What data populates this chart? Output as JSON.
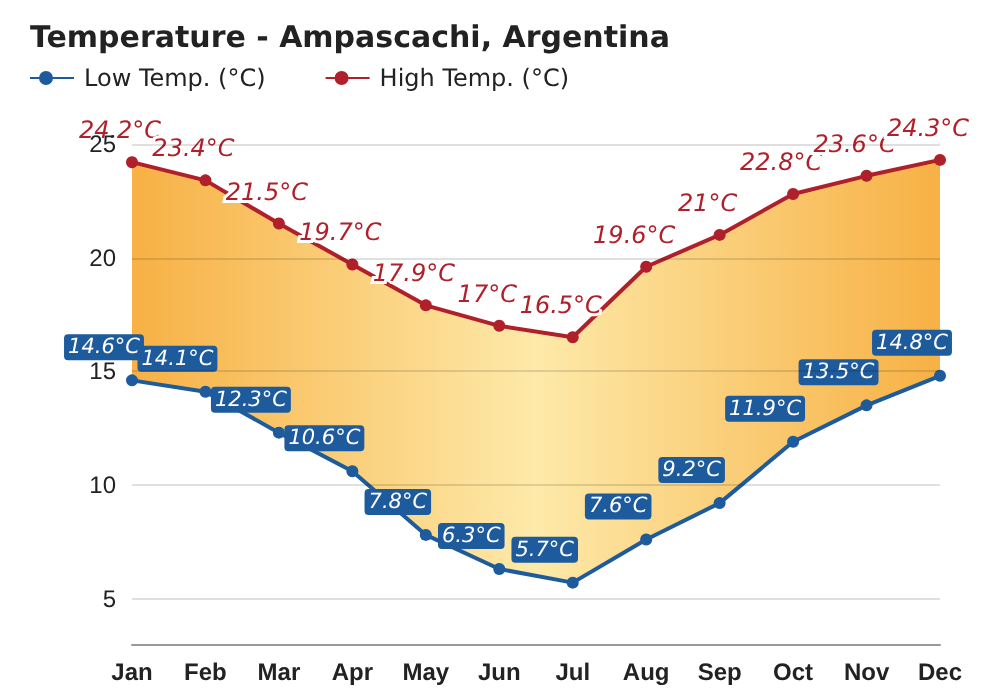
{
  "chart_data": {
    "type": "area",
    "title": "Temperature - Ampascachi, Argentina",
    "categories": [
      "Jan",
      "Feb",
      "Mar",
      "Apr",
      "May",
      "Jun",
      "Jul",
      "Aug",
      "Sep",
      "Oct",
      "Nov",
      "Dec"
    ],
    "series": [
      {
        "name": "Low Temp. (°C)",
        "color": "#1e5b9c",
        "values": [
          14.6,
          14.1,
          12.3,
          10.6,
          7.8,
          6.3,
          5.7,
          7.6,
          9.2,
          11.9,
          13.5,
          14.8
        ],
        "value_labels": [
          "14.6°C",
          "14.1°C",
          "12.3°C",
          "10.6°C",
          "7.8°C",
          "6.3°C",
          "5.7°C",
          "7.6°C",
          "9.2°C",
          "11.9°C",
          "13.5°C",
          "14.8°C"
        ]
      },
      {
        "name": "High Temp. (°C)",
        "color": "#b0202a",
        "values": [
          24.2,
          23.4,
          21.5,
          19.7,
          17.9,
          17,
          16.5,
          19.6,
          21,
          22.8,
          23.6,
          24.3
        ],
        "value_labels": [
          "24.2°C",
          "23.4°C",
          "21.5°C",
          "19.7°C",
          "17.9°C",
          "17°C",
          "16.5°C",
          "19.6°C",
          "21°C",
          "22.8°C",
          "23.6°C",
          "24.3°C"
        ]
      }
    ],
    "ylim": [
      3,
      25
    ],
    "yticks": [
      5,
      10,
      15,
      20,
      25
    ],
    "grid": "y",
    "legend": "top left",
    "marker": "circle",
    "line_style": "solid"
  }
}
